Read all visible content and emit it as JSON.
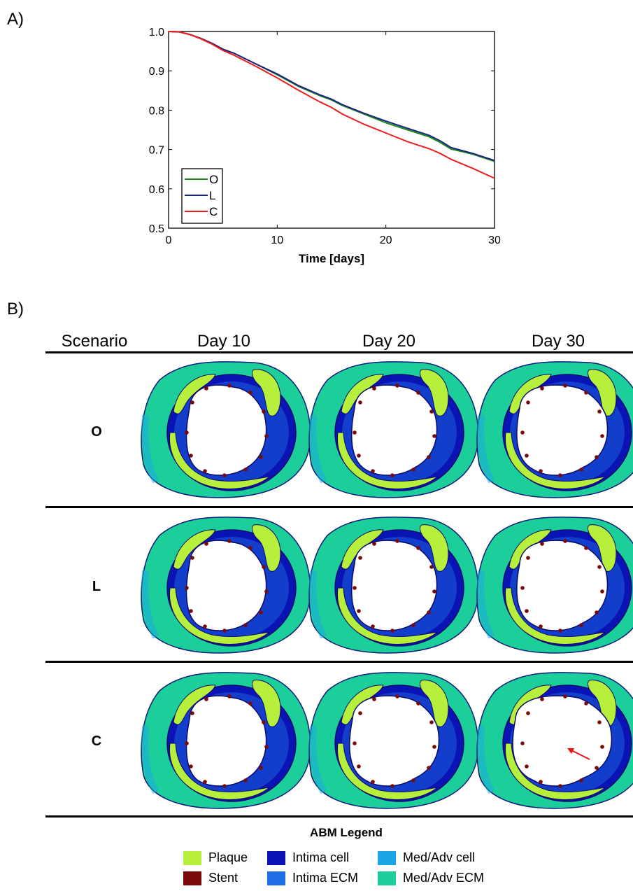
{
  "panel_a_label": "A)",
  "panel_b_label": "B)",
  "chart_data": {
    "type": "line",
    "xlabel": "Time [days]",
    "ylabel": "",
    "xlim": [
      0,
      30
    ],
    "ylim": [
      0.5,
      1.0
    ],
    "xticks": [
      0,
      10,
      20,
      30
    ],
    "yticks": [
      "0.5",
      "0.6",
      "0.7",
      "0.8",
      "0.9",
      "1.0"
    ],
    "legend_position": "bottom-left",
    "series": [
      {
        "name": "O",
        "color": "#1a8a1a",
        "x": [
          0,
          1,
          2,
          3,
          4,
          5,
          6,
          8,
          10,
          12,
          14,
          15,
          16,
          18,
          20,
          22,
          24,
          25,
          26,
          28,
          30
        ],
        "y": [
          1.0,
          0.999,
          0.992,
          0.982,
          0.97,
          0.955,
          0.945,
          0.918,
          0.89,
          0.86,
          0.836,
          0.826,
          0.812,
          0.79,
          0.768,
          0.75,
          0.732,
          0.718,
          0.701,
          0.688,
          0.67
        ]
      },
      {
        "name": "L",
        "color": "#1a237e",
        "x": [
          0,
          1,
          2,
          3,
          4,
          5,
          6,
          8,
          10,
          12,
          14,
          15,
          16,
          18,
          20,
          22,
          24,
          25,
          26,
          28,
          30
        ],
        "y": [
          1.0,
          0.999,
          0.992,
          0.982,
          0.97,
          0.955,
          0.945,
          0.918,
          0.892,
          0.862,
          0.838,
          0.828,
          0.814,
          0.792,
          0.772,
          0.754,
          0.736,
          0.722,
          0.705,
          0.69,
          0.672
        ]
      },
      {
        "name": "C",
        "color": "#ee1c1c",
        "x": [
          0,
          1,
          2,
          3,
          4,
          5,
          6,
          8,
          10,
          12,
          14,
          15,
          16,
          18,
          20,
          22,
          24,
          25,
          26,
          28,
          30
        ],
        "y": [
          1.0,
          0.999,
          0.992,
          0.981,
          0.968,
          0.952,
          0.94,
          0.912,
          0.882,
          0.85,
          0.82,
          0.807,
          0.79,
          0.764,
          0.742,
          0.72,
          0.702,
          0.69,
          0.675,
          0.652,
          0.627
        ]
      }
    ]
  },
  "grid": {
    "column_header_scenario": "Scenario",
    "columns": [
      "Day 10",
      "Day 20",
      "Day 30"
    ],
    "rows": [
      "O",
      "L",
      "C"
    ],
    "arrow_color": "#ee1111"
  },
  "legend": {
    "title": "ABM Legend",
    "items": [
      {
        "label": "Plaque",
        "color": "#b6f03c"
      },
      {
        "label": "Intima cell",
        "color": "#0a14b4"
      },
      {
        "label": "Med/Adv cell",
        "color": "#1aa6e6"
      },
      {
        "label": "Stent",
        "color": "#7a0a0a"
      },
      {
        "label": "Intima ECM",
        "color": "#1e6ee6"
      },
      {
        "label": "Med/Adv ECM",
        "color": "#1ccf9a"
      }
    ]
  }
}
